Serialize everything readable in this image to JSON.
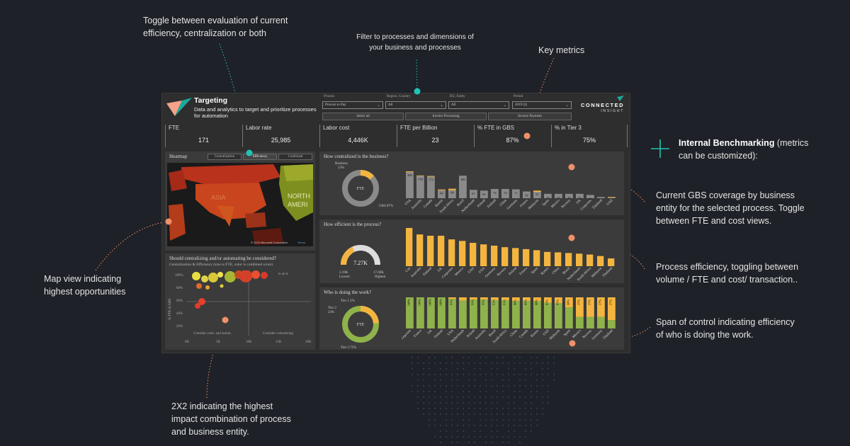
{
  "callouts": {
    "toggle": "Toggle between evaluation of current efficiency, centralization or both",
    "filter": "Filter to processes and dimensions of your business and processes",
    "key_metrics": "Key metrics",
    "internal_bench_bold": "Internal Benchmarking",
    "internal_bench_rest": " (metrics can be customized):",
    "gbs": "Current GBS coverage by business entity for the selected process. Toggle between FTE and cost views.",
    "efficiency": "Process efficiency, toggling between volume / FTE and cost/ transaction..",
    "span": "Span of control indicating efficiency of who is doing the work.",
    "map": "Map view indicating highest opportunities",
    "twobytwo": "2X2 indicating the highest impact combination of process and business entity."
  },
  "colors": {
    "accent_teal": "#1fc4b4",
    "accent_orange": "#f0906a",
    "bar_gray": "#8a8a8a",
    "bar_amber": "#f3b53f",
    "bar_green": "#8fb24a"
  },
  "dashboard": {
    "title": "Targeting",
    "subtitle": "Data and analytics to target and prioritize processes for automation",
    "brand": "CONNECTED",
    "brand_sub": "INSIGHT",
    "filters": [
      {
        "label": "Process",
        "value": "Procure to Pay"
      },
      {
        "label": "Region, Country",
        "value": "All"
      },
      {
        "label": "BU, Entity",
        "value": "All"
      },
      {
        "label": "Period",
        "value": "2019 Q1"
      }
    ],
    "buttons": [
      "Select all",
      "Invoice Processing",
      "Invoice Payment"
    ],
    "kpis": [
      {
        "label": "FTE",
        "value": "171"
      },
      {
        "label": "Labor rate",
        "value": "25,985"
      },
      {
        "label": "Labor cost",
        "value": "4,446K"
      },
      {
        "label": "FTE per Billion",
        "value": "23"
      },
      {
        "label": "% FTE in GBS",
        "value": "87%"
      },
      {
        "label": "% in Tier 3",
        "value": "75%"
      }
    ],
    "heatmap": {
      "title": "Heatmap",
      "toggles": [
        "Centralization",
        "Efficiency",
        "Combined"
      ],
      "labels": [
        "ASIA",
        "NORTH",
        "AMERI"
      ],
      "credit": "© 2020 Microsoft Corporation",
      "credit_brand": "Terms"
    },
    "scatter": {
      "title": "Should centralizing and/or automating be considered?",
      "subtitle": "Centralization & Efficiency (size is FTE, color is combined score)",
      "ylabel": "% FTE in GBS",
      "yticks": [
        "100%",
        "80%",
        "60%",
        "40%",
        "20%"
      ],
      "xticks": [
        "0K",
        "5K",
        "10K",
        "15K",
        "20K"
      ],
      "quad_left": "Consider centr. and autom.",
      "quad_right": "Consider centralizing",
      "quad_top_right": "ts as-is"
    },
    "centralized": {
      "title": "How centralized is the business?",
      "donut_center": "FTE",
      "donut_top": "Business",
      "donut_top_pct": "13%",
      "donut_bottom": "GBS 87%"
    },
    "efficient": {
      "title": "How efficient is the process?",
      "gauge_value": "7.27K",
      "gauge_low": "2.19K",
      "gauge_low_label": "Lowest",
      "gauge_high": "17.69K",
      "gauge_high_label": "Highest"
    },
    "who": {
      "title": "Who is doing the work?",
      "donut_center": "FTE",
      "tier1": "Tier 1 2%",
      "tier2": "Tier 2",
      "tier2_pct": "24%",
      "tier3": "Tier 3 75%"
    }
  },
  "chart_data": [
    {
      "type": "bar",
      "title": "How centralized is the business?",
      "categories": [
        "USA",
        "Australia",
        "Canada",
        "Russia",
        "South Africa",
        "Brazil",
        "Netherlands",
        "Poland",
        "Finland",
        "China",
        "Germany",
        "France",
        "Malaysia",
        "Spain",
        "Mexico",
        "Norway",
        "UK",
        "Corporate",
        "Thailand",
        "UAE"
      ],
      "series": [
        {
          "name": "GBS",
          "values": [
            209,
            178,
            173,
            64,
            64,
            180,
            67,
            61,
            74,
            74,
            71,
            54,
            51,
            35,
            35,
            35,
            35,
            26,
            10,
            5
          ]
        },
        {
          "name": "Business",
          "values": [
            6,
            4,
            5,
            6,
            12,
            0,
            0,
            0,
            0,
            0,
            0,
            0,
            10,
            0,
            0,
            0,
            0,
            0,
            0,
            5
          ]
        }
      ],
      "labels": [
        "209",
        "178",
        "173",
        "64",
        "64",
        "180",
        "67",
        "61",
        "74",
        "74",
        "71",
        "54",
        "51",
        "35",
        "35",
        "35",
        "35",
        "26",
        "",
        ""
      ]
    },
    {
      "type": "bar",
      "title": "How efficient is the process?",
      "categories": [
        "Can",
        "Australia",
        "Finland",
        "UK",
        "Corporate",
        "Mexico",
        "UAE",
        "USA",
        "Germany",
        "Norway",
        "Poland",
        "France",
        "Spain",
        "Russia",
        "China",
        "Brazil",
        "Netherlands",
        "South Africa",
        "Malaysia",
        "Thailand"
      ],
      "values": [
        17.7,
        14.7,
        14.1,
        14.1,
        12.4,
        11.7,
        10.8,
        10.1,
        9.5,
        8.8,
        8.4,
        7.9,
        7.4,
        6.6,
        6.4,
        6.1,
        5.8,
        5.4,
        4.7,
        3.6
      ]
    },
    {
      "type": "bar",
      "title": "Who is doing the work?",
      "categories": [
        "Corporate",
        "France",
        "UK",
        "Finland",
        "USA",
        "Netherlands",
        "Poland",
        "Australia",
        "Brazil",
        "South Africa",
        "China",
        "Canada",
        "Russia",
        "UAE",
        "Malaysia",
        "Spain",
        "Mexico",
        "Norway",
        "Germany",
        "Thailand"
      ],
      "series": [
        {
          "name": "Tier 3",
          "values": [
            100,
            100,
            100,
            100,
            95,
            90,
            93,
            93,
            91,
            91,
            88,
            89,
            88,
            83,
            81,
            68,
            37,
            37,
            37,
            27
          ]
        },
        {
          "name": "Tier 2",
          "values": [
            0,
            0,
            0,
            0,
            5,
            10,
            7,
            7,
            9,
            9,
            12,
            11,
            12,
            17,
            19,
            32,
            63,
            63,
            63,
            73
          ]
        }
      ],
      "labels": [
        "100%",
        "100%",
        "100%",
        "100%",
        "95%",
        "",
        "93%",
        "93%",
        "91%",
        "91%",
        "88%",
        "89%",
        "88%",
        "83%",
        "81%",
        "68%",
        "37%",
        "37%",
        "37%",
        "27%"
      ]
    }
  ]
}
